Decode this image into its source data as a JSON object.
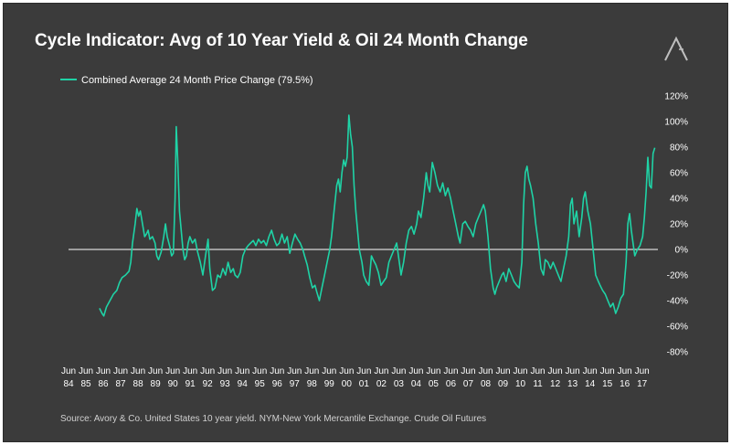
{
  "title": "Cycle Indicator: Avg of 10 Year Yield & Oil 24 Month Change",
  "source": "Source: Avory & Co.  United States 10 year yield. NYM-New York Mercantile Exchange. Crude Oil Futures",
  "logo_icon": "avory-logo-icon",
  "colors": {
    "background": "#3b3b3b",
    "series": "#1fd3a6",
    "zero_line": "#ffffff",
    "text": "#ffffff"
  },
  "chart_data": {
    "type": "line",
    "legend": {
      "position": "top-left",
      "entries": [
        "Combined Average 24 Month Price Change (79.5%)"
      ]
    },
    "grid": false,
    "xlim": [
      1984.42,
      2018.33
    ],
    "ylim": [
      -80,
      120
    ],
    "y_axis_side": "right",
    "y_ticks": [
      {
        "value": 120,
        "label": "120%"
      },
      {
        "value": 100,
        "label": "100%"
      },
      {
        "value": 80,
        "label": "80%"
      },
      {
        "value": 60,
        "label": "60%"
      },
      {
        "value": 40,
        "label": "40%"
      },
      {
        "value": 20,
        "label": "20%"
      },
      {
        "value": 0,
        "label": "0%"
      },
      {
        "value": -20,
        "label": "-20%"
      },
      {
        "value": -40,
        "label": "-40%"
      },
      {
        "value": -60,
        "label": "-60%"
      },
      {
        "value": -80,
        "label": "-80%"
      }
    ],
    "x_ticks": [
      {
        "value": 1984.42,
        "month": "Jun",
        "year": "84"
      },
      {
        "value": 1985.42,
        "month": "Jun",
        "year": "85"
      },
      {
        "value": 1986.42,
        "month": "Jun",
        "year": "86"
      },
      {
        "value": 1987.42,
        "month": "Jun",
        "year": "87"
      },
      {
        "value": 1988.42,
        "month": "Jun",
        "year": "88"
      },
      {
        "value": 1989.42,
        "month": "Jun",
        "year": "89"
      },
      {
        "value": 1990.42,
        "month": "Jun",
        "year": "90"
      },
      {
        "value": 1991.42,
        "month": "Jun",
        "year": "91"
      },
      {
        "value": 1992.42,
        "month": "Jun",
        "year": "92"
      },
      {
        "value": 1993.42,
        "month": "Jun",
        "year": "93"
      },
      {
        "value": 1994.42,
        "month": "Jun",
        "year": "94"
      },
      {
        "value": 1995.42,
        "month": "Jun",
        "year": "95"
      },
      {
        "value": 1996.42,
        "month": "Jun",
        "year": "96"
      },
      {
        "value": 1997.42,
        "month": "Jun",
        "year": "97"
      },
      {
        "value": 1998.42,
        "month": "Jun",
        "year": "98"
      },
      {
        "value": 1999.42,
        "month": "Jun",
        "year": "99"
      },
      {
        "value": 2000.42,
        "month": "Jun",
        "year": "00"
      },
      {
        "value": 2001.42,
        "month": "Jun",
        "year": "01"
      },
      {
        "value": 2002.42,
        "month": "Jun",
        "year": "02"
      },
      {
        "value": 2003.42,
        "month": "Jun",
        "year": "03"
      },
      {
        "value": 2004.42,
        "month": "Jun",
        "year": "04"
      },
      {
        "value": 2005.42,
        "month": "Jun",
        "year": "05"
      },
      {
        "value": 2006.42,
        "month": "Jun",
        "year": "06"
      },
      {
        "value": 2007.42,
        "month": "Jun",
        "year": "07"
      },
      {
        "value": 2008.42,
        "month": "Jun",
        "year": "08"
      },
      {
        "value": 2009.42,
        "month": "Jun",
        "year": "09"
      },
      {
        "value": 2010.42,
        "month": "Jun",
        "year": "10"
      },
      {
        "value": 2011.42,
        "month": "Jun",
        "year": "11"
      },
      {
        "value": 2012.42,
        "month": "Jun",
        "year": "12"
      },
      {
        "value": 2013.42,
        "month": "Jun",
        "year": "13"
      },
      {
        "value": 2014.42,
        "month": "Jun",
        "year": "14"
      },
      {
        "value": 2015.42,
        "month": "Jun",
        "year": "15"
      },
      {
        "value": 2016.42,
        "month": "Jun",
        "year": "16"
      },
      {
        "value": 2017.42,
        "month": "Jun",
        "year": "17"
      }
    ],
    "series": [
      {
        "name": "Combined Average 24 Month Price Change (79.5%)",
        "color": "#1fd3a6",
        "points": [
          [
            1986.2,
            -46
          ],
          [
            1986.35,
            -50
          ],
          [
            1986.45,
            -52
          ],
          [
            1986.6,
            -45
          ],
          [
            1986.8,
            -40
          ],
          [
            1987.0,
            -35
          ],
          [
            1987.2,
            -32
          ],
          [
            1987.35,
            -26
          ],
          [
            1987.5,
            -22
          ],
          [
            1987.7,
            -20
          ],
          [
            1987.9,
            -17
          ],
          [
            1988.0,
            -10
          ],
          [
            1988.1,
            5
          ],
          [
            1988.25,
            20
          ],
          [
            1988.35,
            32
          ],
          [
            1988.45,
            26
          ],
          [
            1988.55,
            30
          ],
          [
            1988.7,
            18
          ],
          [
            1988.8,
            10
          ],
          [
            1988.9,
            12
          ],
          [
            1989.0,
            15
          ],
          [
            1989.1,
            8
          ],
          [
            1989.25,
            10
          ],
          [
            1989.4,
            5
          ],
          [
            1989.5,
            -5
          ],
          [
            1989.6,
            -8
          ],
          [
            1989.75,
            -2
          ],
          [
            1989.9,
            10
          ],
          [
            1990.0,
            20
          ],
          [
            1990.1,
            10
          ],
          [
            1990.25,
            2
          ],
          [
            1990.35,
            -5
          ],
          [
            1990.45,
            -3
          ],
          [
            1990.55,
            40
          ],
          [
            1990.62,
            96
          ],
          [
            1990.7,
            70
          ],
          [
            1990.8,
            30
          ],
          [
            1990.9,
            15
          ],
          [
            1991.0,
            0
          ],
          [
            1991.1,
            -8
          ],
          [
            1991.2,
            -5
          ],
          [
            1991.3,
            5
          ],
          [
            1991.4,
            10
          ],
          [
            1991.55,
            5
          ],
          [
            1991.7,
            8
          ],
          [
            1991.85,
            -2
          ],
          [
            1992.0,
            -10
          ],
          [
            1992.15,
            -20
          ],
          [
            1992.3,
            -5
          ],
          [
            1992.45,
            8
          ],
          [
            1992.55,
            -15
          ],
          [
            1992.7,
            -32
          ],
          [
            1992.85,
            -30
          ],
          [
            1993.0,
            -20
          ],
          [
            1993.15,
            -22
          ],
          [
            1993.3,
            -15
          ],
          [
            1993.45,
            -20
          ],
          [
            1993.6,
            -10
          ],
          [
            1993.75,
            -18
          ],
          [
            1993.9,
            -15
          ],
          [
            1994.0,
            -20
          ],
          [
            1994.15,
            -22
          ],
          [
            1994.3,
            -18
          ],
          [
            1994.45,
            -5
          ],
          [
            1994.6,
            0
          ],
          [
            1994.75,
            3
          ],
          [
            1994.9,
            5
          ],
          [
            1995.05,
            7
          ],
          [
            1995.2,
            3
          ],
          [
            1995.35,
            8
          ],
          [
            1995.5,
            5
          ],
          [
            1995.65,
            7
          ],
          [
            1995.8,
            3
          ],
          [
            1995.95,
            10
          ],
          [
            1996.1,
            15
          ],
          [
            1996.25,
            8
          ],
          [
            1996.4,
            3
          ],
          [
            1996.55,
            5
          ],
          [
            1996.7,
            12
          ],
          [
            1996.85,
            5
          ],
          [
            1997.0,
            10
          ],
          [
            1997.15,
            -3
          ],
          [
            1997.3,
            5
          ],
          [
            1997.45,
            12
          ],
          [
            1997.6,
            8
          ],
          [
            1997.75,
            5
          ],
          [
            1997.9,
            0
          ],
          [
            1998.0,
            -5
          ],
          [
            1998.15,
            -12
          ],
          [
            1998.3,
            -22
          ],
          [
            1998.45,
            -30
          ],
          [
            1998.6,
            -28
          ],
          [
            1998.7,
            -33
          ],
          [
            1998.85,
            -40
          ],
          [
            1999.0,
            -30
          ],
          [
            1999.15,
            -20
          ],
          [
            1999.3,
            -10
          ],
          [
            1999.45,
            0
          ],
          [
            1999.55,
            10
          ],
          [
            1999.7,
            30
          ],
          [
            1999.85,
            50
          ],
          [
            1999.95,
            55
          ],
          [
            2000.05,
            45
          ],
          [
            2000.15,
            60
          ],
          [
            2000.25,
            70
          ],
          [
            2000.35,
            65
          ],
          [
            2000.45,
            72
          ],
          [
            2000.55,
            105
          ],
          [
            2000.65,
            90
          ],
          [
            2000.75,
            80
          ],
          [
            2000.85,
            50
          ],
          [
            2000.95,
            30
          ],
          [
            2001.05,
            15
          ],
          [
            2001.15,
            0
          ],
          [
            2001.3,
            -10
          ],
          [
            2001.4,
            -20
          ],
          [
            2001.55,
            -25
          ],
          [
            2001.7,
            -28
          ],
          [
            2001.85,
            -5
          ],
          [
            2001.95,
            -8
          ],
          [
            2002.1,
            -12
          ],
          [
            2002.25,
            -18
          ],
          [
            2002.4,
            -28
          ],
          [
            2002.55,
            -25
          ],
          [
            2002.7,
            -22
          ],
          [
            2002.85,
            -10
          ],
          [
            2003.0,
            -5
          ],
          [
            2003.15,
            0
          ],
          [
            2003.3,
            5
          ],
          [
            2003.45,
            -10
          ],
          [
            2003.55,
            -20
          ],
          [
            2003.7,
            -10
          ],
          [
            2003.85,
            5
          ],
          [
            2004.0,
            15
          ],
          [
            2004.15,
            18
          ],
          [
            2004.3,
            12
          ],
          [
            2004.45,
            20
          ],
          [
            2004.55,
            30
          ],
          [
            2004.7,
            25
          ],
          [
            2004.85,
            40
          ],
          [
            2005.0,
            60
          ],
          [
            2005.1,
            50
          ],
          [
            2005.2,
            45
          ],
          [
            2005.35,
            68
          ],
          [
            2005.5,
            60
          ],
          [
            2005.65,
            50
          ],
          [
            2005.8,
            45
          ],
          [
            2005.95,
            52
          ],
          [
            2006.1,
            42
          ],
          [
            2006.25,
            48
          ],
          [
            2006.4,
            40
          ],
          [
            2006.55,
            30
          ],
          [
            2006.7,
            20
          ],
          [
            2006.85,
            10
          ],
          [
            2006.95,
            5
          ],
          [
            2007.1,
            20
          ],
          [
            2007.25,
            22
          ],
          [
            2007.4,
            18
          ],
          [
            2007.55,
            15
          ],
          [
            2007.7,
            10
          ],
          [
            2007.85,
            20
          ],
          [
            2008.0,
            25
          ],
          [
            2008.15,
            30
          ],
          [
            2008.3,
            35
          ],
          [
            2008.4,
            30
          ],
          [
            2008.55,
            10
          ],
          [
            2008.7,
            -15
          ],
          [
            2008.85,
            -30
          ],
          [
            2008.95,
            -35
          ],
          [
            2009.05,
            -30
          ],
          [
            2009.2,
            -25
          ],
          [
            2009.35,
            -20
          ],
          [
            2009.45,
            -18
          ],
          [
            2009.6,
            -25
          ],
          [
            2009.75,
            -15
          ],
          [
            2009.9,
            -20
          ],
          [
            2010.05,
            -25
          ],
          [
            2010.2,
            -28
          ],
          [
            2010.35,
            -30
          ],
          [
            2010.5,
            -10
          ],
          [
            2010.6,
            35
          ],
          [
            2010.7,
            60
          ],
          [
            2010.8,
            65
          ],
          [
            2010.9,
            55
          ],
          [
            2011.0,
            50
          ],
          [
            2011.15,
            40
          ],
          [
            2011.3,
            20
          ],
          [
            2011.45,
            5
          ],
          [
            2011.6,
            -15
          ],
          [
            2011.75,
            -20
          ],
          [
            2011.85,
            -8
          ],
          [
            2012.0,
            -10
          ],
          [
            2012.15,
            -15
          ],
          [
            2012.3,
            -10
          ],
          [
            2012.45,
            -15
          ],
          [
            2012.6,
            -20
          ],
          [
            2012.75,
            -25
          ],
          [
            2012.9,
            -15
          ],
          [
            2013.05,
            -5
          ],
          [
            2013.2,
            10
          ],
          [
            2013.3,
            35
          ],
          [
            2013.4,
            40
          ],
          [
            2013.5,
            20
          ],
          [
            2013.65,
            30
          ],
          [
            2013.8,
            10
          ],
          [
            2013.95,
            25
          ],
          [
            2014.05,
            40
          ],
          [
            2014.15,
            45
          ],
          [
            2014.3,
            30
          ],
          [
            2014.45,
            20
          ],
          [
            2014.6,
            0
          ],
          [
            2014.75,
            -20
          ],
          [
            2014.9,
            -25
          ],
          [
            2015.0,
            -28
          ],
          [
            2015.15,
            -32
          ],
          [
            2015.3,
            -35
          ],
          [
            2015.45,
            -40
          ],
          [
            2015.6,
            -45
          ],
          [
            2015.75,
            -42
          ],
          [
            2015.9,
            -50
          ],
          [
            2016.05,
            -45
          ],
          [
            2016.2,
            -38
          ],
          [
            2016.35,
            -35
          ],
          [
            2016.5,
            -10
          ],
          [
            2016.6,
            20
          ],
          [
            2016.7,
            28
          ],
          [
            2016.8,
            15
          ],
          [
            2016.9,
            5
          ],
          [
            2017.0,
            -5
          ],
          [
            2017.15,
            0
          ],
          [
            2017.3,
            3
          ],
          [
            2017.45,
            10
          ],
          [
            2017.55,
            25
          ],
          [
            2017.65,
            45
          ],
          [
            2017.75,
            72
          ],
          [
            2017.85,
            50
          ],
          [
            2017.95,
            48
          ],
          [
            2018.05,
            75
          ],
          [
            2018.15,
            79.5
          ]
        ]
      }
    ]
  }
}
